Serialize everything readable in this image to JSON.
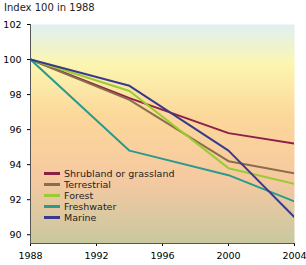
{
  "chart_data": {
    "type": "line",
    "y_label": "Index 100 in 1988",
    "x": [
      1988,
      1994,
      2000,
      2004
    ],
    "series": [
      {
        "name": "Shrubland or grassland",
        "color": "#8e1f45",
        "values": [
          100,
          97.8,
          95.8,
          95.2
        ]
      },
      {
        "name": "Terrestrial",
        "color": "#8a6d4c",
        "values": [
          100,
          97.7,
          94.2,
          93.5
        ]
      },
      {
        "name": "Forest",
        "color": "#9acb34",
        "values": [
          100,
          98.2,
          93.8,
          92.9
        ]
      },
      {
        "name": "Freshwater",
        "color": "#2a9a8c",
        "values": [
          100,
          94.8,
          93.4,
          91.9
        ]
      },
      {
        "name": "Marine",
        "color": "#3a3a8c",
        "values": [
          100,
          98.5,
          94.8,
          91.0
        ]
      }
    ],
    "xlim": [
      1988,
      2004
    ],
    "xticks": [
      1988,
      1992,
      1996,
      2000,
      2004
    ],
    "ylim": [
      89.5,
      102
    ],
    "yticks": [
      90,
      92,
      94,
      96,
      98,
      100,
      102
    ],
    "grid": false,
    "legend": "bottom-left"
  }
}
